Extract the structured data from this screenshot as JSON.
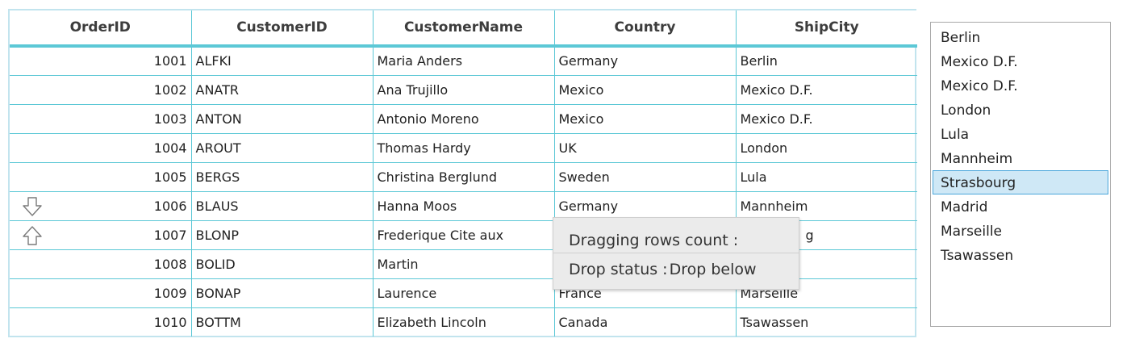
{
  "grid": {
    "columns": [
      "OrderID",
      "CustomerID",
      "CustomerName",
      "Country",
      "ShipCity"
    ],
    "rows": [
      {
        "order_id": "1001",
        "customer_id": "ALFKI",
        "customer_name": "Maria Anders",
        "country": "Germany",
        "ship_city": "Berlin"
      },
      {
        "order_id": "1002",
        "customer_id": "ANATR",
        "customer_name": "Ana Trujillo",
        "country": "Mexico",
        "ship_city": "Mexico D.F."
      },
      {
        "order_id": "1003",
        "customer_id": "ANTON",
        "customer_name": "Antonio Moreno",
        "country": "Mexico",
        "ship_city": "Mexico D.F."
      },
      {
        "order_id": "1004",
        "customer_id": "AROUT",
        "customer_name": "Thomas Hardy",
        "country": "UK",
        "ship_city": "London"
      },
      {
        "order_id": "1005",
        "customer_id": "BERGS",
        "customer_name": "Christina Berglund",
        "country": "Sweden",
        "ship_city": "Lula"
      },
      {
        "order_id": "1006",
        "customer_id": "BLAUS",
        "customer_name": "Hanna Moos",
        "country": "Germany",
        "ship_city": "Mannheim",
        "drag_icon": "arrow-down-icon"
      },
      {
        "order_id": "1007",
        "customer_id": "BLONP",
        "customer_name": "Frederique Cite aux",
        "country": "",
        "ship_city": "g",
        "drag_icon": "arrow-up-icon"
      },
      {
        "order_id": "1008",
        "customer_id": "BOLID",
        "customer_name": "Martin",
        "country": "",
        "ship_city": ""
      },
      {
        "order_id": "1009",
        "customer_id": "BONAP",
        "customer_name": "Laurence",
        "country": "France",
        "ship_city": "Marseille"
      },
      {
        "order_id": "1010",
        "customer_id": "BOTTM",
        "customer_name": "Elizabeth Lincoln",
        "country": "Canada",
        "ship_city": "Tsawassen"
      }
    ]
  },
  "drag_tooltip": {
    "count_label": "Dragging rows count :",
    "count_value": "",
    "status_label": "Drop status :",
    "status_value": "Drop below"
  },
  "listbox": {
    "items": [
      "Berlin",
      "Mexico D.F.",
      "Mexico D.F.",
      "London",
      "Lula",
      "Mannheim",
      "Strasbourg",
      "Madrid",
      "Marseille",
      "Tsawassen"
    ],
    "selected": "Strasbourg"
  },
  "colors": {
    "grid_line": "#5cc8d6",
    "selection_bg": "#cfe8f6",
    "selection_border": "#4aa6db"
  }
}
